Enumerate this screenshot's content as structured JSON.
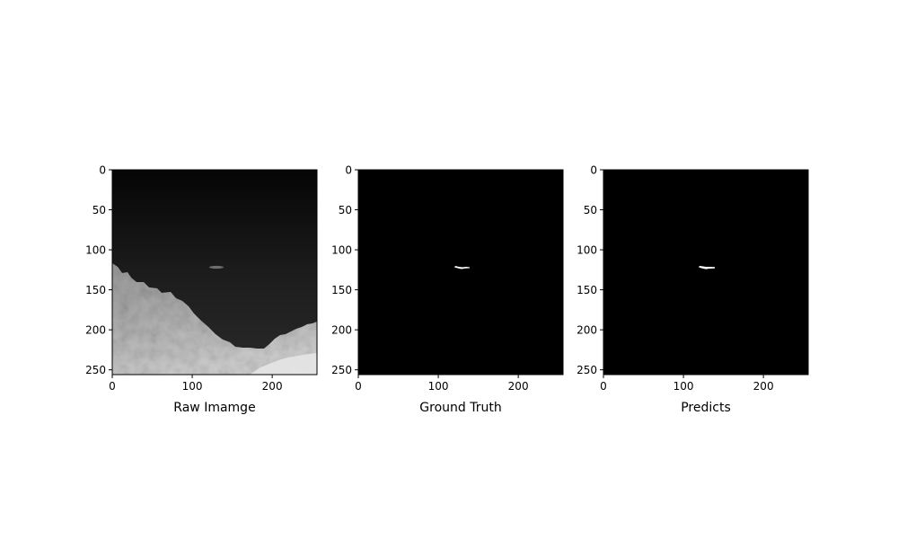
{
  "figure": {
    "background": "#ffffff",
    "description_axis_color": "#000000"
  },
  "chart_data": [
    {
      "type": "image",
      "xlabel": "Raw Imamge",
      "xlim": [
        0,
        256
      ],
      "ylim": [
        256,
        0
      ],
      "xticks": [
        0,
        100,
        200
      ],
      "yticks": [
        0,
        50,
        100,
        150,
        200,
        250
      ],
      "content": "grayscale-infrared-scene",
      "target": {
        "x": [
          121,
          138
        ],
        "y": [
          119,
          123
        ]
      }
    },
    {
      "type": "image",
      "xlabel": "Ground Truth",
      "xlim": [
        0,
        256
      ],
      "ylim": [
        256,
        0
      ],
      "xticks": [
        0,
        100,
        200
      ],
      "yticks": [
        0,
        50,
        100,
        150,
        200,
        250
      ],
      "content": "binary-mask",
      "target": {
        "x": [
          121,
          139
        ],
        "y": [
          119,
          124
        ]
      }
    },
    {
      "type": "image",
      "xlabel": "Predicts",
      "xlim": [
        0,
        256
      ],
      "ylim": [
        256,
        0
      ],
      "xticks": [
        0,
        100,
        200
      ],
      "yticks": [
        0,
        50,
        100,
        150,
        200,
        250
      ],
      "content": "binary-mask",
      "target": {
        "x": [
          119,
          138
        ],
        "y": [
          118,
          124
        ]
      }
    }
  ]
}
